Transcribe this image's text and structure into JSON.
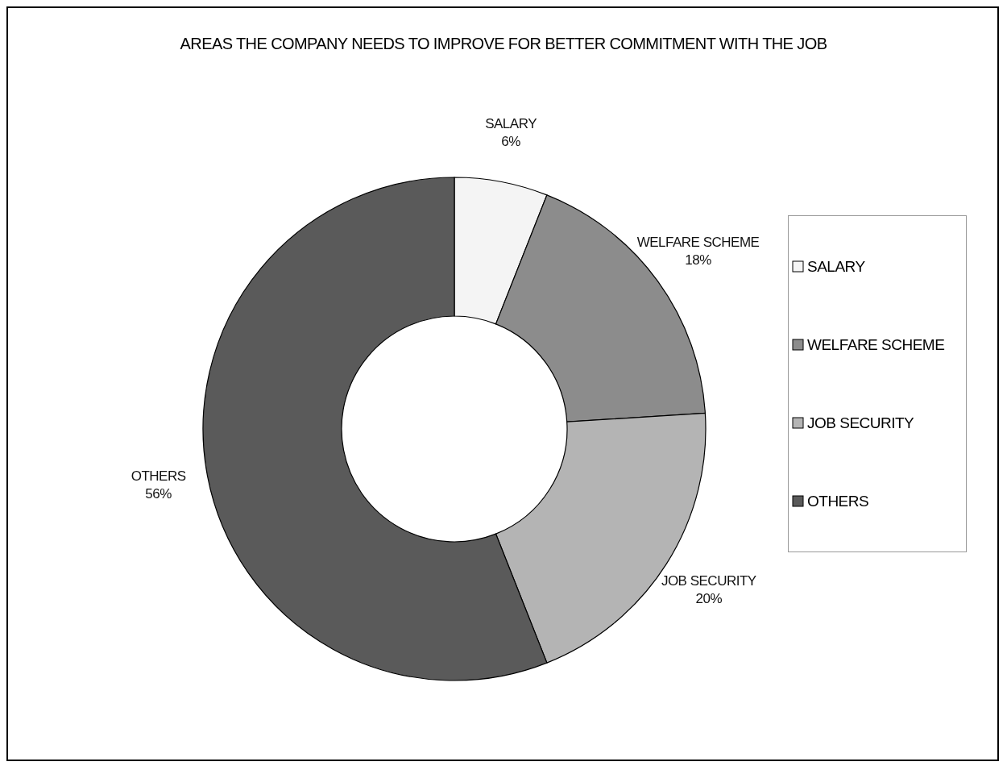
{
  "chart_data": {
    "type": "donut",
    "title": "AREAS THE COMPANY NEEDS TO IMPROVE FOR BETTER COMMITMENT WITH THE JOB",
    "categories": [
      "SALARY",
      "WELFARE SCHEME",
      "JOB SECURITY",
      "OTHERS"
    ],
    "values": [
      6,
      18,
      20,
      56
    ],
    "value_labels": [
      "6%",
      "18%",
      "20%",
      "56%"
    ],
    "colors": [
      "#f4f4f4",
      "#8c8c8c",
      "#b4b4b4",
      "#5a5a5a"
    ],
    "legend": "right"
  }
}
